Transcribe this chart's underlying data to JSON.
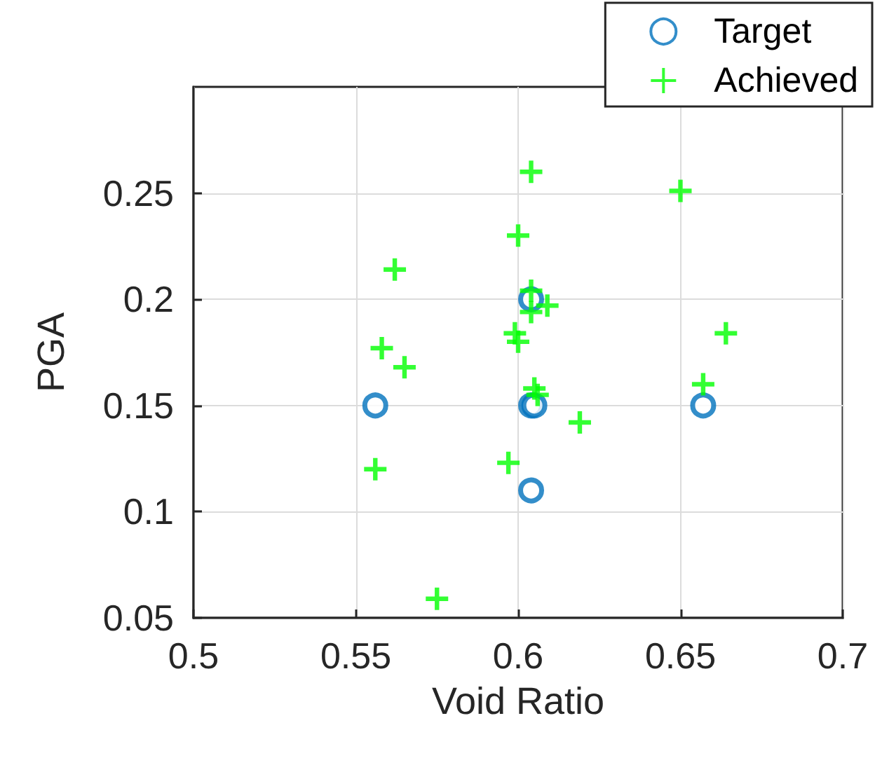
{
  "chart_data": {
    "type": "scatter",
    "xlabel": "Void Ratio",
    "ylabel": "PGA",
    "xlim": [
      0.5,
      0.7
    ],
    "xticks": [
      0.5,
      0.55,
      0.6,
      0.65,
      0.7
    ],
    "ylim": [
      0.05,
      0.3
    ],
    "yticks": [
      0.05,
      0.1,
      0.15,
      0.2,
      0.25
    ],
    "grid": true,
    "legend": "top right",
    "series": [
      {
        "name": "Target",
        "color": "#0072bd",
        "marker": "circle",
        "x": [
          0.556,
          0.604,
          0.604,
          0.605,
          0.604,
          0.657
        ],
        "values": [
          0.15,
          0.2,
          0.15,
          0.15,
          0.11,
          0.15
        ]
      },
      {
        "name": "Achieved",
        "color": "#00ff00",
        "marker": "cross",
        "x": [
          0.604,
          0.65,
          0.6,
          0.562,
          0.604,
          0.609,
          0.604,
          0.599,
          0.6,
          0.558,
          0.565,
          0.664,
          0.605,
          0.606,
          0.657,
          0.619,
          0.556,
          0.597,
          0.575
        ],
        "values": [
          0.26,
          0.251,
          0.23,
          0.214,
          0.204,
          0.197,
          0.194,
          0.184,
          0.18,
          0.177,
          0.168,
          0.184,
          0.158,
          0.155,
          0.16,
          0.142,
          0.12,
          0.123,
          0.059
        ]
      }
    ]
  }
}
